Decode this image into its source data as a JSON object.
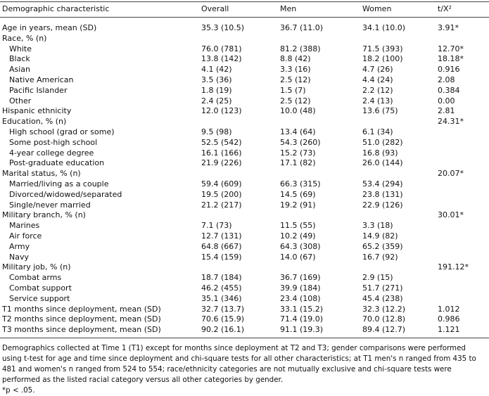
{
  "table": {
    "header": [
      "Demographic characteristic",
      "Overall",
      "Men",
      "Women",
      "t/X²"
    ],
    "rows": [
      {
        "cells": [
          "Age in years, mean (SD)",
          "35.3 (10.5)",
          "36.7 (11.0)",
          "34.1 (10.0)",
          "3.91*"
        ]
      },
      {
        "cells": [
          "Race, % (n)",
          null,
          null,
          null,
          null
        ],
        "subrows": [
          [
            "White",
            "76.0 (781)",
            "81.2 (388)",
            "71.5 (393)",
            "12.70*"
          ],
          [
            "Black",
            "13.8 (142)",
            "8.8 (42)",
            "18.2 (100)",
            "18.18*"
          ],
          [
            "Asian",
            "4.1 (42)",
            "3.3 (16)",
            "4.7 (26)",
            "0.916"
          ],
          [
            "Native American",
            "3.5 (36)",
            "2.5 (12)",
            "4.4 (24)",
            "2.08"
          ],
          [
            "Pacific Islander",
            "1.8 (19)",
            "1.5 (7)",
            "2.2 (12)",
            "0.384"
          ],
          [
            "Other",
            "2.4 (25)",
            "2.5 (12)",
            "2.4 (13)",
            "0.00"
          ]
        ]
      },
      {
        "cells": [
          "Hispanic ethnicity",
          "12.0 (123)",
          "10.0 (48)",
          "13.6 (75)",
          "2.81"
        ]
      },
      {
        "cells": [
          "Education, % (n)",
          null,
          null,
          null,
          "24.31*"
        ],
        "subrows": [
          [
            "High school (grad or some)",
            "9.5 (98)",
            "13.4 (64)",
            "6.1 (34)",
            null
          ],
          [
            "Some post-high school",
            "52.5 (542)",
            "54.3 (260)",
            "51.0 (282)",
            null
          ],
          [
            "4-year college degree",
            "16.1 (166)",
            "15.2 (73)",
            "16.8 (93)",
            null
          ],
          [
            "Post-graduate education",
            "21.9 (226)",
            "17.1 (82)",
            "26.0 (144)",
            null
          ]
        ]
      },
      {
        "cells": [
          "Marital status, % (n)",
          null,
          null,
          null,
          "20.07*"
        ],
        "subrows": [
          [
            "Married/living as a couple",
            "59.4 (609)",
            "66.3 (315)",
            "53.4 (294)",
            null
          ],
          [
            "Divorced/widowed/separated",
            "19.5 (200)",
            "14.5 (69)",
            "23.8 (131)",
            null
          ],
          [
            "Single/never married",
            "21.2 (217)",
            "19.2 (91)",
            "22.9 (126)",
            null
          ]
        ]
      },
      {
        "cells": [
          "Military branch, % (n)",
          null,
          null,
          null,
          "30.01*"
        ],
        "subrows": [
          [
            "Marines",
            "7.1 (73)",
            "11.5 (55)",
            "3.3 (18)",
            null
          ],
          [
            "Air force",
            "12.7 (131)",
            "10.2 (49)",
            "14.9 (82)",
            null
          ],
          [
            "Army",
            "64.8 (667)",
            "64.3 (308)",
            "65.2 (359)",
            null
          ],
          [
            "Navy",
            "15.4 (159)",
            "14.0 (67)",
            "16.7 (92)",
            null
          ]
        ]
      },
      {
        "cells": [
          "Military job, % (n)",
          null,
          null,
          null,
          "191.12*"
        ],
        "subrows": [
          [
            "Combat arms",
            "18.7 (184)",
            "36.7 (169)",
            "2.9 (15)",
            null
          ],
          [
            "Combat support",
            "46.2 (455)",
            "39.9 (184)",
            "51.7 (271)",
            null
          ],
          [
            "Service support",
            "35.1 (346)",
            "23.4 (108)",
            "45.4 (238)",
            null
          ]
        ]
      },
      {
        "cells": [
          "T1 months since deployment, mean (SD)",
          "32.7 (13.7)",
          "33.1 (15.2)",
          "32.3 (12.2)",
          "1.012"
        ]
      },
      {
        "cells": [
          "T2 months since deployment, mean (SD)",
          "70.6 (15.9)",
          "71.4 (19.0)",
          "70.0 (12.8)",
          "0.986"
        ]
      },
      {
        "cells": [
          "T3 months since deployment, mean (SD)",
          "90.2 (16.1)",
          "91.1 (19.3)",
          "89.4 (12.7)",
          "1.121"
        ]
      }
    ]
  },
  "notes": [
    "Demographics collected at Time 1 (T1) except for months since deployment at T2 and T3; gender comparisons were performed using t-test for age and time since deployment and chi-square tests for all other characteristics; at T1 men's n ranged from 435 to 481 and women's n ranged from 524 to 554; race/ethnicity categories are not mutually exclusive and chi-square tests were performed as the listed racial category versus all other categories by gender.",
    "*p < .05."
  ]
}
